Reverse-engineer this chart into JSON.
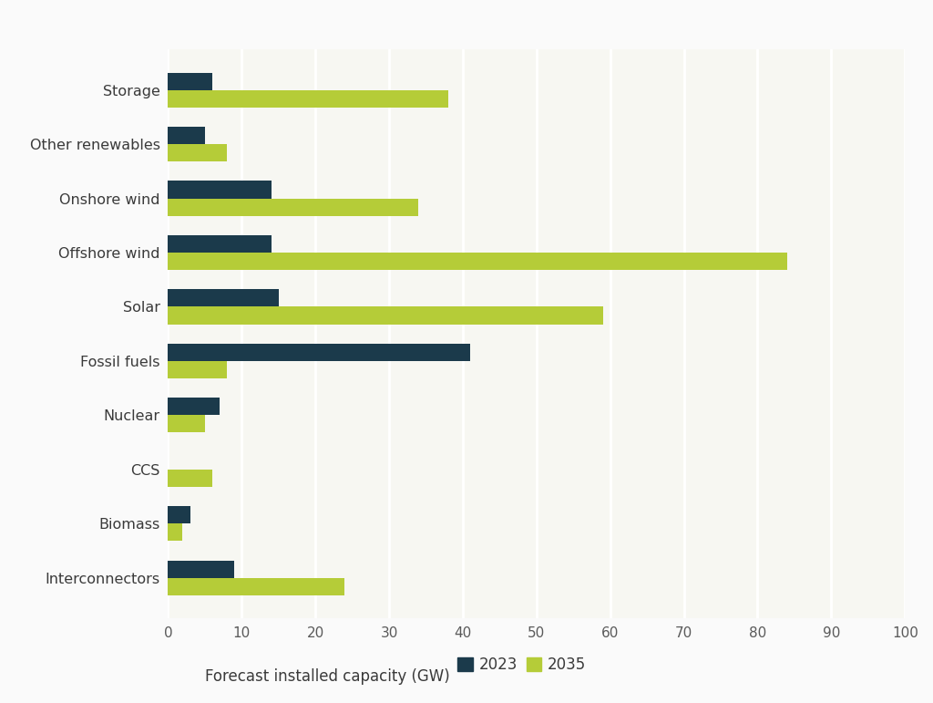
{
  "categories": [
    "Interconnectors",
    "Biomass",
    "CCS",
    "Nuclear",
    "Fossil fuels",
    "Solar",
    "Offshore wind",
    "Onshore wind",
    "Other renewables",
    "Storage"
  ],
  "values_2023": [
    9,
    3,
    0,
    7,
    41,
    15,
    14,
    14,
    5,
    6
  ],
  "values_2035": [
    24,
    2,
    6,
    5,
    8,
    59,
    84,
    34,
    8,
    38
  ],
  "color_2023": "#1b3a4b",
  "color_2035": "#b5cc38",
  "legend_prefix": "Forecast installed capacity (GW)",
  "legend_2023": "2023",
  "legend_2035": "2035",
  "xlim": [
    0,
    100
  ],
  "xticks": [
    0,
    10,
    20,
    30,
    40,
    50,
    60,
    70,
    80,
    90,
    100
  ],
  "background_color": "#f7f7f2",
  "grid_color": "#ffffff",
  "bar_height": 0.32,
  "figsize": [
    10.24,
    7.71
  ],
  "dpi": 100
}
